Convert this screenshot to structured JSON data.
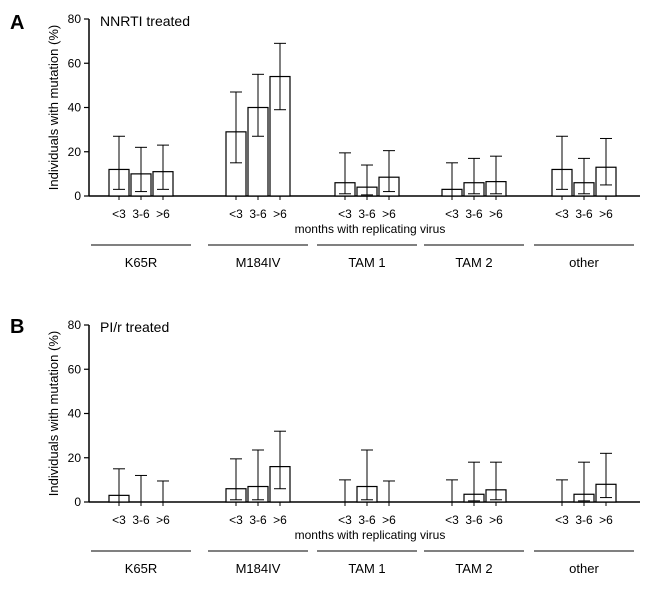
{
  "chart_data": [
    {
      "type": "bar",
      "panel_letter": "A",
      "title": "NNRTI treated",
      "ylabel": "Individuals with mutation (%)",
      "xlabel": "months with replicating virus",
      "ylim": [
        0,
        80
      ],
      "yticks": [
        0,
        20,
        40,
        60,
        80
      ],
      "categories": [
        "<3",
        "3-6",
        ">6"
      ],
      "groups": [
        {
          "name": "K65R",
          "values": [
            12,
            10,
            11
          ],
          "err_low": [
            3,
            2,
            3
          ],
          "err_high": [
            27,
            22,
            23
          ]
        },
        {
          "name": "M184IV",
          "values": [
            29,
            40,
            54
          ],
          "err_low": [
            15,
            27,
            39
          ],
          "err_high": [
            47,
            55,
            69
          ]
        },
        {
          "name": "TAM 1",
          "values": [
            6,
            4,
            8.5
          ],
          "err_low": [
            1,
            0.5,
            2
          ],
          "err_high": [
            19.5,
            14,
            20.5
          ]
        },
        {
          "name": "TAM 2",
          "values": [
            3,
            6,
            6.5
          ],
          "err_low": [
            0,
            1,
            1
          ],
          "err_high": [
            15,
            17,
            18
          ]
        },
        {
          "name": "other",
          "values": [
            12,
            6,
            13
          ],
          "err_low": [
            3,
            1,
            5
          ],
          "err_high": [
            27,
            17,
            26
          ]
        }
      ]
    },
    {
      "type": "bar",
      "panel_letter": "B",
      "title": "PI/r treated",
      "ylabel": "Individuals with mutation (%)",
      "xlabel": "months with replicating virus",
      "ylim": [
        0,
        80
      ],
      "yticks": [
        0,
        20,
        40,
        60,
        80
      ],
      "categories": [
        "<3",
        "3-6",
        ">6"
      ],
      "groups": [
        {
          "name": "K65R",
          "values": [
            3,
            0,
            0
          ],
          "err_low": [
            0,
            0,
            0
          ],
          "err_high": [
            15,
            12,
            9.5
          ]
        },
        {
          "name": "M184IV",
          "values": [
            6,
            7,
            16
          ],
          "err_low": [
            1,
            1,
            6
          ],
          "err_high": [
            19.5,
            23.5,
            32
          ]
        },
        {
          "name": "TAM 1",
          "values": [
            0,
            7,
            0
          ],
          "err_low": [
            0,
            1,
            0
          ],
          "err_high": [
            10,
            23.5,
            9.5
          ]
        },
        {
          "name": "TAM 2",
          "values": [
            0,
            3.5,
            5.5
          ],
          "err_low": [
            0,
            0.5,
            1
          ],
          "err_high": [
            10,
            18,
            18
          ]
        },
        {
          "name": "other",
          "values": [
            0,
            3.5,
            8
          ],
          "err_low": [
            0,
            0.5,
            2
          ],
          "err_high": [
            10,
            18,
            22
          ]
        }
      ]
    }
  ]
}
